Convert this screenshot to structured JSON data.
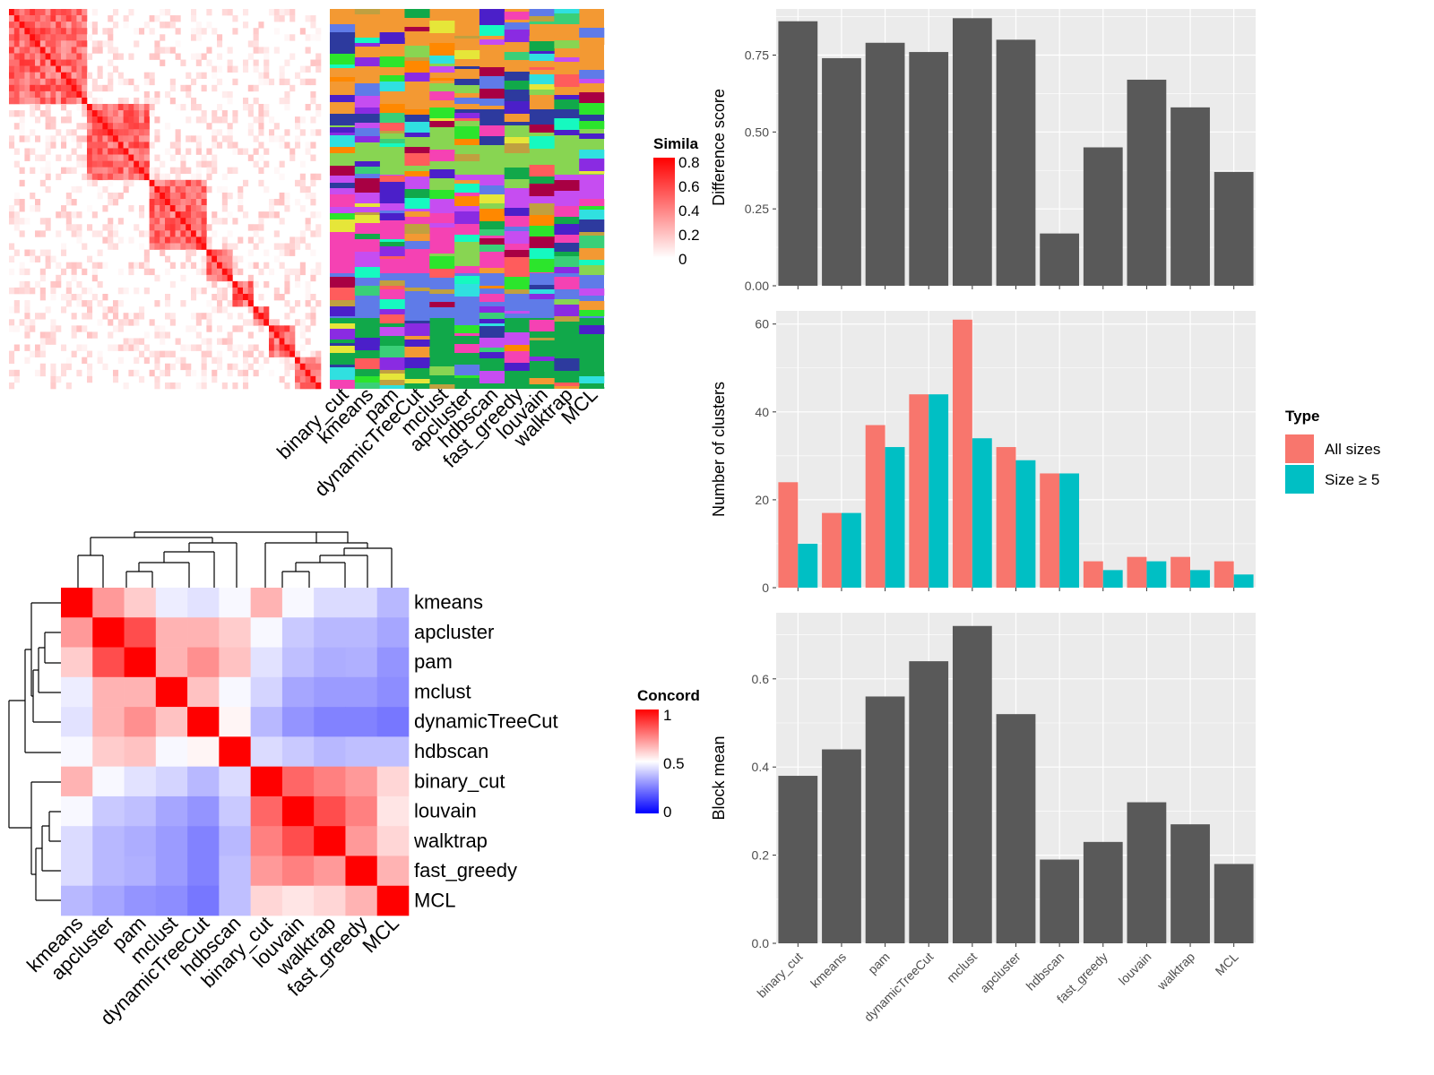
{
  "chart_data": [
    {
      "type": "heatmap",
      "name": "similarity-matrix",
      "legend_title": "Similarity",
      "legend_ticks": [
        "0.8",
        "0.6",
        "0.4",
        "0.2",
        "0"
      ],
      "colors": {
        "low": "#ffffff",
        "high": "#ff0000"
      }
    },
    {
      "type": "heatmap",
      "name": "cluster-assignment-bars",
      "methods": [
        "binary_cut",
        "kmeans",
        "pam",
        "dynamicTreeCut",
        "mclust",
        "apcluster",
        "hdbscan",
        "fast_greedy",
        "louvain",
        "walktrap",
        "MCL"
      ]
    },
    {
      "type": "heatmap",
      "name": "concordance-matrix",
      "legend_title": "Concordance",
      "legend_ticks": [
        "1",
        "0.5",
        "0"
      ],
      "labels": [
        "kmeans",
        "apcluster",
        "pam",
        "mclust",
        "dynamicTreeCut",
        "hdbscan",
        "binary_cut",
        "louvain",
        "walktrap",
        "fast_greedy",
        "MCL"
      ],
      "matrix": [
        [
          1.0,
          0.7,
          0.6,
          0.45,
          0.42,
          0.48,
          0.65,
          0.48,
          0.4,
          0.4,
          0.3
        ],
        [
          0.7,
          1.0,
          0.85,
          0.65,
          0.65,
          0.6,
          0.48,
          0.35,
          0.3,
          0.3,
          0.25
        ],
        [
          0.6,
          0.85,
          1.0,
          0.65,
          0.72,
          0.62,
          0.42,
          0.32,
          0.27,
          0.28,
          0.2
        ],
        [
          0.45,
          0.65,
          0.65,
          1.0,
          0.62,
          0.48,
          0.38,
          0.25,
          0.22,
          0.22,
          0.18
        ],
        [
          0.42,
          0.65,
          0.72,
          0.62,
          1.0,
          0.52,
          0.3,
          0.2,
          0.15,
          0.15,
          0.12
        ],
        [
          0.48,
          0.6,
          0.62,
          0.48,
          0.52,
          1.0,
          0.4,
          0.35,
          0.3,
          0.32,
          0.32
        ],
        [
          0.65,
          0.48,
          0.42,
          0.38,
          0.3,
          0.4,
          1.0,
          0.8,
          0.75,
          0.7,
          0.58
        ],
        [
          0.48,
          0.35,
          0.32,
          0.25,
          0.2,
          0.35,
          0.8,
          1.0,
          0.85,
          0.75,
          0.55
        ],
        [
          0.4,
          0.3,
          0.27,
          0.22,
          0.15,
          0.3,
          0.75,
          0.85,
          1.0,
          0.7,
          0.58
        ],
        [
          0.4,
          0.3,
          0.28,
          0.22,
          0.15,
          0.32,
          0.7,
          0.75,
          0.7,
          1.0,
          0.65
        ],
        [
          0.3,
          0.25,
          0.2,
          0.18,
          0.12,
          0.32,
          0.58,
          0.55,
          0.58,
          0.65,
          1.0
        ]
      ]
    },
    {
      "type": "bar",
      "name": "difference-score",
      "categories": [
        "binary_cut",
        "kmeans",
        "pam",
        "dynamicTreeCut",
        "mclust",
        "apcluster",
        "hdbscan",
        "fast_greedy",
        "louvain",
        "walktrap",
        "MCL"
      ],
      "values": [
        0.86,
        0.74,
        0.79,
        0.76,
        0.87,
        0.8,
        0.17,
        0.45,
        0.67,
        0.58,
        0.37
      ],
      "ylabel": "Difference score",
      "ylim": [
        0,
        0.9
      ],
      "yticks": [
        "0.00",
        "0.25",
        "0.50",
        "0.75"
      ],
      "yticks_values": [
        0,
        0.25,
        0.5,
        0.75
      ]
    },
    {
      "type": "bar",
      "name": "number-of-clusters",
      "categories": [
        "binary_cut",
        "kmeans",
        "pam",
        "dynamicTreeCut",
        "mclust",
        "apcluster",
        "hdbscan",
        "fast_greedy",
        "louvain",
        "walktrap",
        "MCL"
      ],
      "series": [
        {
          "name": "All sizes",
          "values": [
            24,
            17,
            37,
            44,
            61,
            32,
            26,
            6,
            7,
            7,
            6
          ],
          "color": "#F8766D"
        },
        {
          "name": "Size ≥ 5",
          "values": [
            10,
            17,
            32,
            44,
            34,
            29,
            26,
            4,
            6,
            4,
            3
          ],
          "color": "#00BFC4"
        }
      ],
      "ylabel": "Number of clusters",
      "ylim": [
        0,
        63
      ],
      "yticks": [
        "0",
        "20",
        "40",
        "60"
      ],
      "yticks_values": [
        0,
        20,
        40,
        60
      ],
      "legend_title": "Type"
    },
    {
      "type": "bar",
      "name": "block-mean",
      "categories": [
        "binary_cut",
        "kmeans",
        "pam",
        "dynamicTreeCut",
        "mclust",
        "apcluster",
        "hdbscan",
        "fast_greedy",
        "louvain",
        "walktrap",
        "MCL"
      ],
      "values": [
        0.38,
        0.44,
        0.56,
        0.64,
        0.72,
        0.52,
        0.19,
        0.23,
        0.32,
        0.27,
        0.18
      ],
      "ylabel": "Block mean",
      "ylim": [
        0,
        0.75
      ],
      "yticks": [
        "0.0",
        "0.2",
        "0.4",
        "0.6"
      ],
      "yticks_values": [
        0,
        0.2,
        0.4,
        0.6
      ]
    }
  ]
}
